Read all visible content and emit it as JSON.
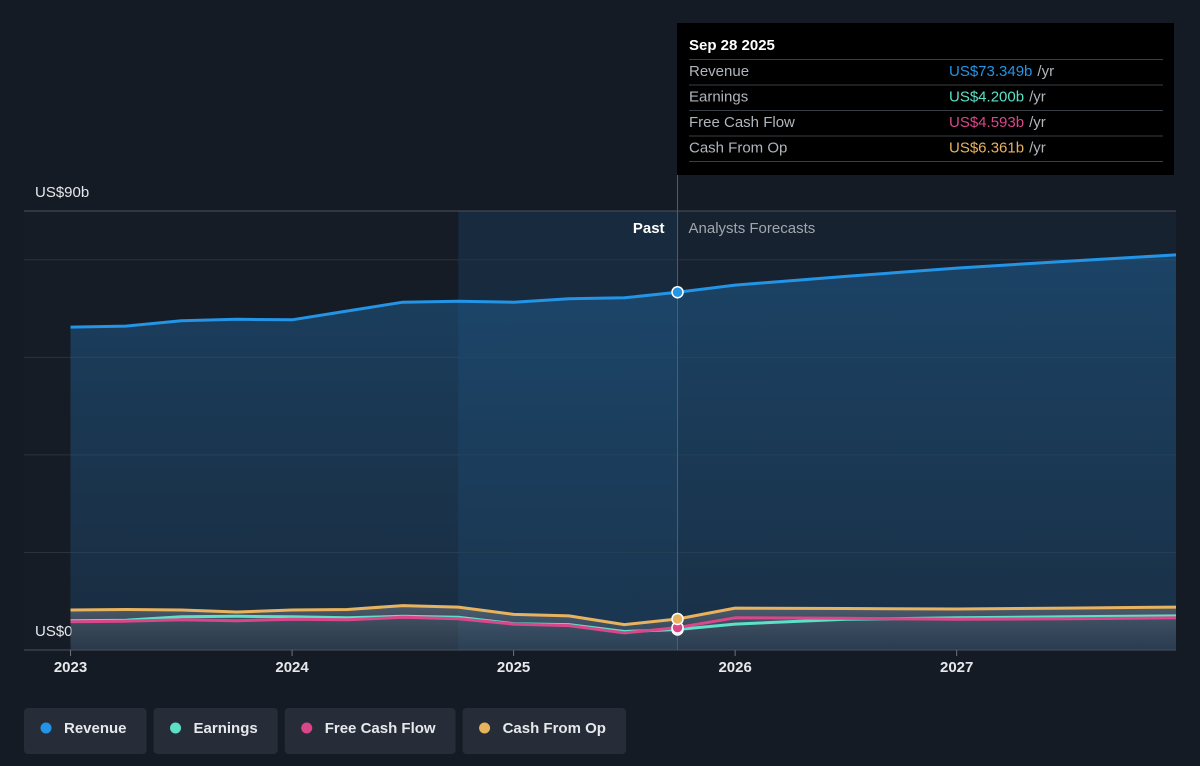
{
  "chart_data": {
    "type": "line",
    "x": [
      2023,
      2023.25,
      2023.5,
      2023.75,
      2024,
      2024.25,
      2024.5,
      2024.75,
      2025,
      2025.25,
      2025.5,
      2025.74,
      2026,
      2026.5,
      2027,
      2027.5,
      2027.99
    ],
    "xlim": [
      2022.79,
      2027.99
    ],
    "xticks": [
      2023,
      2024,
      2025,
      2026,
      2027
    ],
    "ylim": [
      0,
      90
    ],
    "yticks": [
      {
        "value": 0,
        "label": "US$0"
      },
      {
        "value": 90,
        "label": "US$90b"
      }
    ],
    "grid_values": [
      20,
      40,
      60,
      80
    ],
    "highlight_start": 2024.75,
    "forecast_start": 2025.74,
    "past_label": "Past",
    "forecast_label": "Analysts Forecasts",
    "series": [
      {
        "name": "Revenue",
        "color": "#2394e6",
        "values": [
          66.2,
          66.4,
          67.5,
          67.8,
          67.7,
          69.5,
          71.3,
          71.5,
          71.3,
          72.0,
          72.2,
          73.349,
          74.8,
          76.6,
          78.3,
          79.7,
          81.0
        ],
        "value_labels": [
          null,
          null,
          null,
          null,
          null,
          null,
          null,
          null,
          null,
          null,
          null,
          "US$73.349b",
          null,
          null,
          null,
          null,
          null
        ]
      },
      {
        "name": "Earnings",
        "color": "#5ce0c6",
        "values": [
          6.0,
          6.1,
          6.8,
          6.9,
          6.8,
          6.6,
          6.9,
          6.7,
          5.4,
          5.2,
          3.8,
          4.2,
          5.3,
          6.3,
          6.6,
          6.8,
          7.0
        ],
        "value_labels": [
          null,
          null,
          null,
          null,
          null,
          null,
          null,
          null,
          null,
          null,
          null,
          "US$4.200b",
          null,
          null,
          null,
          null,
          null
        ]
      },
      {
        "name": "Free Cash Flow",
        "color": "#d9478a",
        "values": [
          5.8,
          5.9,
          6.2,
          6.0,
          6.3,
          6.2,
          6.7,
          6.4,
          5.3,
          5.0,
          3.5,
          4.593,
          6.6,
          6.5,
          6.3,
          6.4,
          6.6
        ],
        "value_labels": [
          null,
          null,
          null,
          null,
          null,
          null,
          null,
          null,
          null,
          null,
          null,
          "US$4.593b",
          null,
          null,
          null,
          null,
          null
        ]
      },
      {
        "name": "Cash From Op",
        "color": "#e8b35e",
        "values": [
          8.2,
          8.3,
          8.2,
          7.8,
          8.2,
          8.3,
          9.1,
          8.8,
          7.3,
          7.0,
          5.2,
          6.361,
          8.6,
          8.5,
          8.4,
          8.6,
          8.8
        ],
        "value_labels": [
          null,
          null,
          null,
          null,
          null,
          null,
          null,
          null,
          null,
          null,
          null,
          "US$6.361b",
          null,
          null,
          null,
          null,
          null
        ]
      }
    ],
    "tooltip": {
      "date": "Sep 28 2025",
      "index": 11,
      "unit": "/yr"
    }
  }
}
